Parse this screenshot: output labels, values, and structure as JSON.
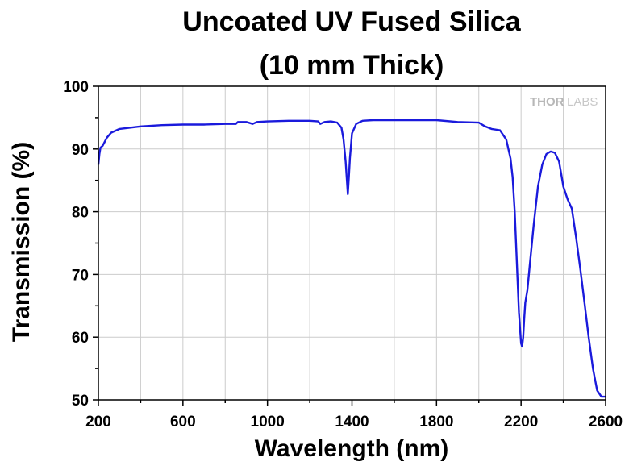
{
  "chart_data": {
    "type": "line",
    "title_lines": [
      "Uncoated UV Fused Silica",
      "(10 mm Thick)"
    ],
    "xlabel": "Wavelength (nm)",
    "ylabel": "Transmission (%)",
    "xlim": [
      200,
      2600
    ],
    "ylim": [
      50,
      100
    ],
    "x_ticks": [
      200,
      600,
      1000,
      1400,
      1800,
      2200,
      2600
    ],
    "y_ticks": [
      50,
      60,
      70,
      80,
      90,
      100
    ],
    "grid": true,
    "logo": {
      "part1": "THOR",
      "part2": "LABS"
    },
    "colors": {
      "line": "#1a1adc",
      "grid": "#cccccc",
      "axis": "#000000"
    },
    "series": [
      {
        "x": [
          200,
          205,
          210,
          220,
          240,
          260,
          300,
          400,
          500,
          600,
          700,
          800,
          850,
          860,
          900,
          930,
          950,
          1000,
          1100,
          1200,
          1240,
          1250,
          1270,
          1300,
          1330,
          1350,
          1360,
          1370,
          1375,
          1380,
          1385,
          1390,
          1400,
          1420,
          1450,
          1500,
          1600,
          1700,
          1800,
          1900,
          2000,
          2030,
          2060,
          2100,
          2130,
          2150,
          2160,
          2170,
          2180,
          2190,
          2200,
          2205,
          2210,
          2215,
          2220,
          2230,
          2240,
          2260,
          2280,
          2300,
          2320,
          2340,
          2360,
          2380,
          2390,
          2400,
          2420,
          2440,
          2460,
          2480,
          2500,
          2520,
          2540,
          2560,
          2580,
          2600
        ],
        "y": [
          87.5,
          89.2,
          90.2,
          90.5,
          91.8,
          92.6,
          93.2,
          93.6,
          93.8,
          93.9,
          93.9,
          94.0,
          94.0,
          94.3,
          94.3,
          94.0,
          94.3,
          94.4,
          94.5,
          94.5,
          94.4,
          94.0,
          94.3,
          94.4,
          94.2,
          93.4,
          91.5,
          88.0,
          85.5,
          82.8,
          85.5,
          88.5,
          92.5,
          94.0,
          94.5,
          94.6,
          94.6,
          94.6,
          94.6,
          94.3,
          94.2,
          93.6,
          93.2,
          93.0,
          91.5,
          88.5,
          85.5,
          80.0,
          72.0,
          64.0,
          59.0,
          58.5,
          60.0,
          63.0,
          65.5,
          67.5,
          71.0,
          78.0,
          84.0,
          87.5,
          89.2,
          89.6,
          89.4,
          88.0,
          86.0,
          84.0,
          82.0,
          80.5,
          76.0,
          71.0,
          65.5,
          60.0,
          55.0,
          51.5,
          50.5,
          50.5
        ]
      }
    ]
  }
}
